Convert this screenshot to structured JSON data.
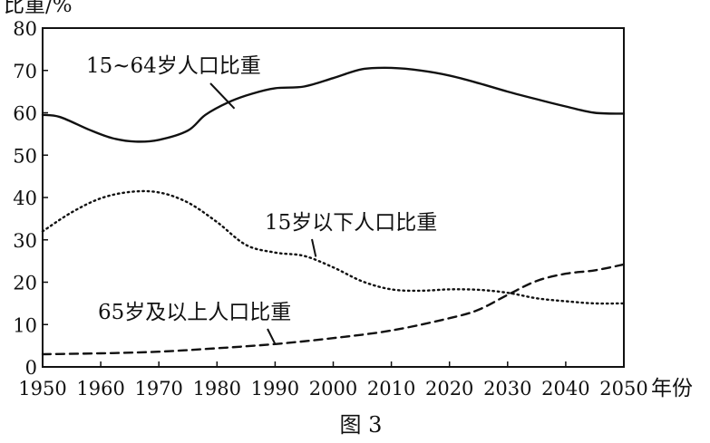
{
  "chart_data": {
    "type": "line",
    "ylabel": "比重/%",
    "xlabel": "年份",
    "caption": "图 3",
    "xlim": [
      1950,
      2050
    ],
    "ylim": [
      0,
      80
    ],
    "x_ticks": [
      1950,
      1960,
      1970,
      1980,
      1990,
      2000,
      2010,
      2020,
      2030,
      2040,
      2050
    ],
    "y_ticks": [
      0,
      10,
      20,
      30,
      40,
      50,
      60,
      70,
      80
    ],
    "grid": false,
    "series": [
      {
        "name": "15~64岁人口比重",
        "style": "solid",
        "x": [
          1950,
          1953,
          1958,
          1962,
          1966,
          1970,
          1975,
          1978,
          1982,
          1986,
          1990,
          1995,
          2000,
          2005,
          2010,
          2015,
          2020,
          2025,
          2030,
          2035,
          2040,
          2045,
          2050
        ],
        "y": [
          59.5,
          59,
          56,
          54,
          53.2,
          53.6,
          55.8,
          59.5,
          62.5,
          64.5,
          65.8,
          66.2,
          68.2,
          70.3,
          70.6,
          70,
          68.8,
          67,
          65,
          63.2,
          61.5,
          60,
          59.8
        ]
      },
      {
        "name": "15岁以下人口比重",
        "style": "dotted",
        "x": [
          1950,
          1955,
          1960,
          1965,
          1970,
          1975,
          1980,
          1985,
          1990,
          1995,
          2000,
          2005,
          2010,
          2015,
          2020,
          2025,
          2030,
          2035,
          2040,
          2045,
          2050
        ],
        "y": [
          32,
          36.5,
          39.8,
          41.3,
          41.2,
          38.8,
          34.2,
          28.8,
          27,
          26.2,
          23.5,
          20.2,
          18.3,
          18,
          18.3,
          18.2,
          17.5,
          16.2,
          15.5,
          15,
          15
        ]
      },
      {
        "name": "65岁及以上人口比重",
        "style": "dashed",
        "x": [
          1950,
          1960,
          1970,
          1980,
          1990,
          2000,
          2010,
          2020,
          2025,
          2030,
          2035,
          2040,
          2045,
          2050
        ],
        "y": [
          3,
          3.2,
          3.6,
          4.4,
          5.4,
          6.8,
          8.6,
          11.5,
          13.5,
          17,
          20.3,
          22,
          22.8,
          24.2
        ]
      }
    ],
    "annotations": [
      {
        "text": "15~64岁人口比重",
        "series": 0,
        "x": 1983,
        "y": 61
      },
      {
        "text": "15岁以下人口比重",
        "series": 1,
        "x": 1997,
        "y": 26
      },
      {
        "text": "65岁及以上人口比重",
        "series": 2,
        "x": 1990,
        "y": 5.4
      }
    ]
  }
}
